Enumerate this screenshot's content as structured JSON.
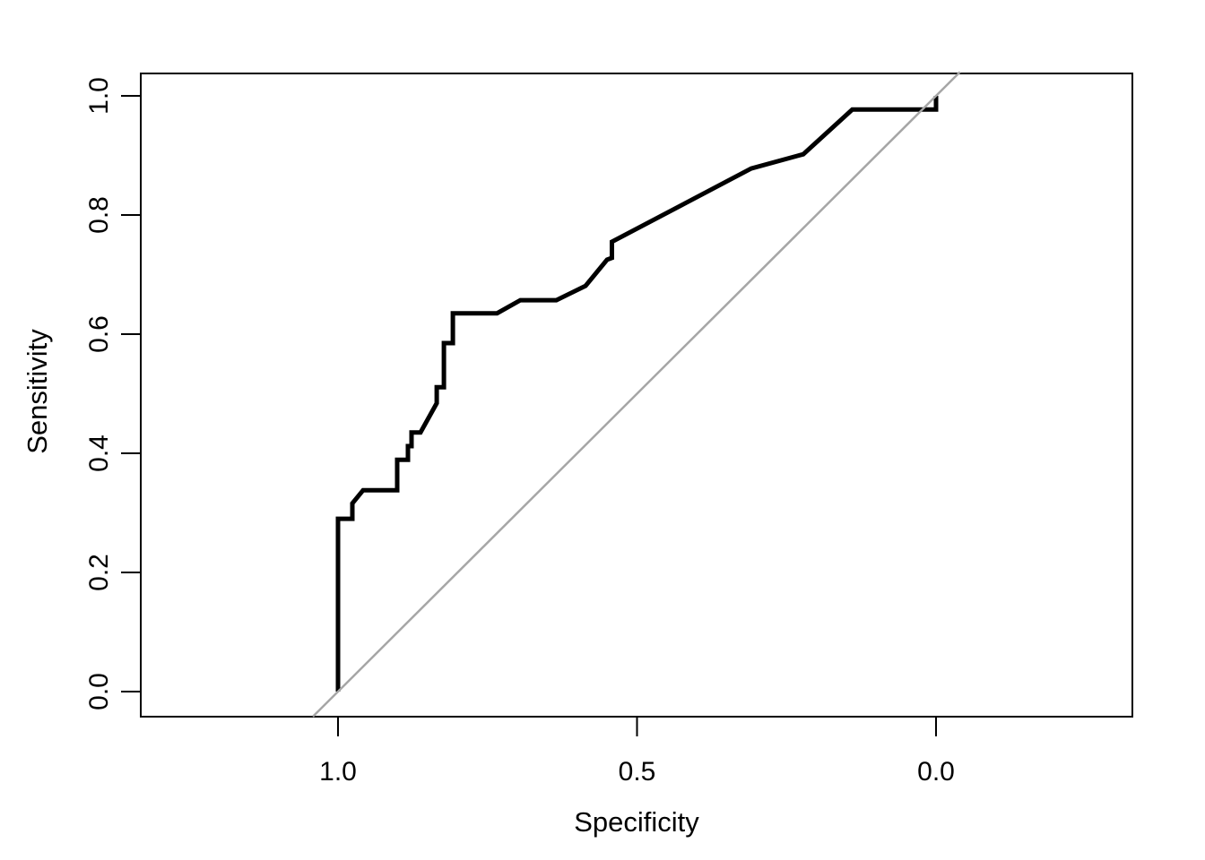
{
  "figure": {
    "background": "#ffffff",
    "border_color": "#000000",
    "text_color": "#000000"
  },
  "chart_data": {
    "type": "line",
    "title": "",
    "xlabel": "Specificity",
    "ylabel": "Sensitivity",
    "x_ticks": [
      "1.0",
      "0.5",
      "0.0"
    ],
    "y_ticks": [
      "0.0",
      "0.2",
      "0.4",
      "0.6",
      "0.8",
      "1.0"
    ],
    "xlim": [
      1.0,
      0.0
    ],
    "ylim": [
      0.0,
      1.0
    ],
    "x_axis_reversed": true,
    "grid": false,
    "legend": "none",
    "series": [
      {
        "name": "roc-curve",
        "color": "#000000",
        "line_width": 5,
        "points": [
          [
            1.0,
            0.0
          ],
          [
            1.0,
            0.29
          ],
          [
            0.976,
            0.29
          ],
          [
            0.976,
            0.316
          ],
          [
            0.958,
            0.338
          ],
          [
            0.901,
            0.338
          ],
          [
            0.901,
            0.389
          ],
          [
            0.883,
            0.389
          ],
          [
            0.883,
            0.412
          ],
          [
            0.877,
            0.412
          ],
          [
            0.877,
            0.435
          ],
          [
            0.862,
            0.435
          ],
          [
            0.835,
            0.484
          ],
          [
            0.835,
            0.511
          ],
          [
            0.823,
            0.511
          ],
          [
            0.823,
            0.585
          ],
          [
            0.808,
            0.585
          ],
          [
            0.808,
            0.635
          ],
          [
            0.734,
            0.635
          ],
          [
            0.695,
            0.657
          ],
          [
            0.635,
            0.657
          ],
          [
            0.586,
            0.681
          ],
          [
            0.55,
            0.725
          ],
          [
            0.542,
            0.728
          ],
          [
            0.542,
            0.755
          ],
          [
            0.309,
            0.878
          ],
          [
            0.222,
            0.902
          ],
          [
            0.14,
            0.977
          ],
          [
            0.0,
            0.977
          ],
          [
            0.0,
            1.0
          ]
        ]
      },
      {
        "name": "chance-diagonal",
        "color": "#a6a6a6",
        "line_width": 2.5,
        "points": [
          [
            1.042,
            -0.042
          ],
          [
            -0.04,
            1.04
          ]
        ]
      }
    ]
  }
}
